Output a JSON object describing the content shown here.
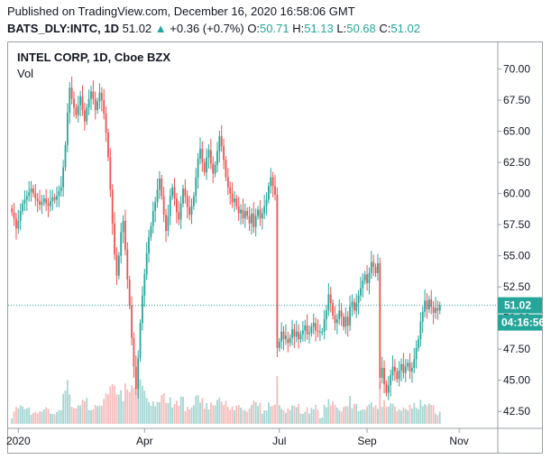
{
  "header": {
    "published": "Published on TradingView.com, December 16, 2020 16:58:06 GMT",
    "symbol": "BATS_DLY:INTC, 1D",
    "last": "51.02",
    "change_arrow": "▲",
    "change": "+0.36 (+0.7%)",
    "o_label": "O:",
    "o_value": "50.71",
    "h_label": "H:",
    "h_value": "51.13",
    "l_label": "L:",
    "l_value": "50.68",
    "c_label": "C:",
    "c_value": "51.02"
  },
  "colors": {
    "up": "#26a69a",
    "down": "#ef5350",
    "vol_up": "#a5d6d2",
    "vol_down": "#f7bcbb"
  },
  "chart_data": {
    "type": "candlestick",
    "title": "INTEL CORP, 1D, Cboe BZX",
    "volume_label": "Vol",
    "ylim": [
      41.5,
      71.2
    ],
    "y_ticks": [
      "70.00",
      "67.50",
      "65.00",
      "62.50",
      "60.00",
      "57.50",
      "55.00",
      "52.50",
      "50.00",
      "47.50",
      "45.00",
      "42.50"
    ],
    "x_ticks": [
      {
        "label": "2020",
        "index": 3
      },
      {
        "label": "Apr",
        "index": 62
      },
      {
        "label": "Jul",
        "index": 125
      },
      {
        "label": "Sep",
        "index": 166
      },
      {
        "label": "Nov",
        "index": 209
      }
    ],
    "last_price": 51.02,
    "last_price_label": "51.02",
    "countdown_label": "04:16:56",
    "closes": [
      58.5,
      58.0,
      57.2,
      57.8,
      58.6,
      59.2,
      59.5,
      59.8,
      60.1,
      60.4,
      60.0,
      59.6,
      59.4,
      59.1,
      59.3,
      59.6,
      59.2,
      59.0,
      59.4,
      59.7,
      59.5,
      59.8,
      60.2,
      60.5,
      62.1,
      63.9,
      66.5,
      68.5,
      67.6,
      66.9,
      66.3,
      67.1,
      67.8,
      66.7,
      65.8,
      66.9,
      67.6,
      68.2,
      67.6,
      66.7,
      67.4,
      68.1,
      67.5,
      66.4,
      64.9,
      62.9,
      60.3,
      57.6,
      55.1,
      53.4,
      55.0,
      56.9,
      57.8,
      55.5,
      53.1,
      51.0,
      48.4,
      46.1,
      44.3,
      46.8,
      49.6,
      51.8,
      53.5,
      55.2,
      56.5,
      57.4,
      58.6,
      59.3,
      60.3,
      61.2,
      59.8,
      58.3,
      57.0,
      58.2,
      59.8,
      60.5,
      59.6,
      58.5,
      57.9,
      59.2,
      60.4,
      59.8,
      58.9,
      58.3,
      59.0,
      59.8,
      61.3,
      62.8,
      63.6,
      62.5,
      61.7,
      62.9,
      63.5,
      62.4,
      61.6,
      62.3,
      63.4,
      64.6,
      63.8,
      62.7,
      61.3,
      60.5,
      60.0,
      59.3,
      59.6,
      59.0,
      58.4,
      58.7,
      58.0,
      58.6,
      58.2,
      57.6,
      58.4,
      57.3,
      58.2,
      58.7,
      58.0,
      58.4,
      59.0,
      59.5,
      60.6,
      61.3,
      60.6,
      59.9,
      47.6,
      48.1,
      48.9,
      48.3,
      48.6,
      48.0,
      48.4,
      49.1,
      48.5,
      48.9,
      48.3,
      48.7,
      49.0,
      49.4,
      48.7,
      48.8,
      49.3,
      49.6,
      49.0,
      48.9,
      48.9,
      48.9,
      49.9,
      50.6,
      51.9,
      51.2,
      50.2,
      49.6,
      49.9,
      50.6,
      50.1,
      49.3,
      50.1,
      49.4,
      50.9,
      51.3,
      50.6,
      51.2,
      51.8,
      52.4,
      53.0,
      53.5,
      52.8,
      53.6,
      54.5,
      54.1,
      53.6,
      54.4,
      45.2,
      46.0,
      44.7,
      44.0,
      44.6,
      45.4,
      46.1,
      45.7,
      45.1,
      45.8,
      46.3,
      45.6,
      46.1,
      46.4,
      45.7,
      46.0,
      46.7,
      47.6,
      48.3,
      49.7,
      50.5,
      51.4,
      50.7,
      51.5,
      50.9,
      50.4,
      50.8,
      50.6,
      51.02
    ],
    "x_domain": [
      0,
      250
    ],
    "start_index": 0,
    "secondary_start_index": 129
  }
}
